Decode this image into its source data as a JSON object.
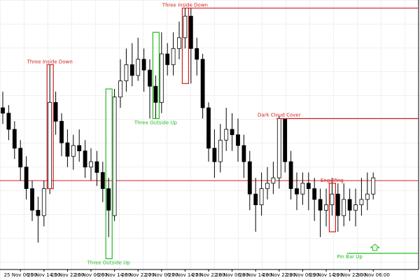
{
  "chart_data": {
    "type": "candlestick",
    "categories": [
      null,
      null,
      null,
      "25 Nov 06:00",
      null,
      null,
      null,
      "25 Nov 14:00",
      null,
      null,
      null,
      "25 Nov 22:00",
      null,
      null,
      null,
      "26 Nov 06:00",
      null,
      null,
      null,
      "26 Nov 14:00",
      null,
      null,
      null,
      "26 Nov 22:00",
      null,
      null,
      null,
      "27 Nov 06:00",
      null,
      null,
      null,
      "27 Nov 14:00",
      null,
      null,
      null,
      "27 Nov 22:00",
      null,
      null,
      null,
      "28 Nov 06:00",
      null,
      null,
      null,
      "28 Nov 14:00",
      null,
      null,
      null,
      "28 Nov 22:00",
      null,
      null,
      null,
      "29 Nov 06:00",
      null,
      null,
      null,
      "29 Nov 14:00",
      null,
      null,
      null,
      "29 Nov 22:00",
      null,
      null,
      null,
      "30 Nov 06:00"
    ],
    "open": [
      60,
      58,
      52,
      45,
      38,
      30,
      22,
      20,
      30,
      62,
      55,
      47,
      42,
      46,
      44,
      38,
      40,
      36,
      30,
      20,
      64,
      70,
      76,
      72,
      78,
      74,
      68,
      62,
      80,
      76,
      82,
      86,
      94,
      82,
      78,
      60,
      45,
      40,
      48,
      52,
      50,
      46,
      40,
      28,
      24,
      30,
      32,
      34,
      56,
      40,
      30,
      28,
      32,
      30,
      26,
      22,
      24,
      28,
      20,
      26,
      22,
      24,
      26,
      28
    ],
    "high": [
      66,
      61,
      55,
      48,
      42,
      33,
      27,
      33,
      76,
      66,
      58,
      52,
      50,
      52,
      48,
      45,
      44,
      40,
      34,
      67,
      78,
      82,
      84,
      86,
      82,
      78,
      72,
      88,
      84,
      88,
      92,
      97,
      97,
      86,
      80,
      62,
      52,
      54,
      60,
      58,
      56,
      50,
      44,
      34,
      36,
      38,
      40,
      57,
      56,
      44,
      36,
      36,
      36,
      34,
      30,
      30,
      34,
      32,
      32,
      30,
      30,
      34,
      36,
      36
    ],
    "low": [
      54,
      48,
      41,
      33,
      26,
      18,
      10,
      16,
      28,
      50,
      42,
      38,
      37,
      40,
      34,
      33,
      31,
      25,
      12,
      18,
      60,
      66,
      68,
      70,
      66,
      56,
      56,
      58,
      72,
      72,
      78,
      82,
      69,
      72,
      56,
      40,
      34,
      36,
      44,
      44,
      40,
      34,
      22,
      14,
      20,
      26,
      28,
      30,
      36,
      26,
      22,
      24,
      22,
      18,
      12,
      16,
      20,
      14,
      16,
      18,
      16,
      20,
      22,
      26
    ],
    "close": [
      58,
      52,
      45,
      38,
      30,
      22,
      20,
      30,
      62,
      55,
      47,
      42,
      46,
      44,
      38,
      40,
      36,
      30,
      22,
      64,
      70,
      76,
      72,
      78,
      74,
      68,
      62,
      80,
      76,
      82,
      86,
      94,
      82,
      78,
      60,
      45,
      40,
      48,
      52,
      50,
      46,
      40,
      28,
      24,
      30,
      32,
      34,
      56,
      40,
      30,
      28,
      32,
      30,
      26,
      22,
      24,
      28,
      20,
      26,
      22,
      24,
      26,
      28,
      34
    ],
    "ylim": [
      0,
      100
    ],
    "hline": {
      "level": 33,
      "color": "#d42020"
    },
    "annotations": [
      {
        "text": "Three Inside Down",
        "color": "#d42020",
        "start": 8,
        "high": 76,
        "low": 30
      },
      {
        "text": "Three Outside Up",
        "color": "#22bb22",
        "start": 18,
        "high": 67,
        "low": 4
      },
      {
        "text": "Three Outside Up",
        "color": "#22bb22",
        "start": 26,
        "high": 88,
        "low": 56
      },
      {
        "text": "Three Inside Down",
        "color": "#d42020",
        "start": 31,
        "high": 97,
        "low": 69,
        "level": 97
      },
      {
        "text": "Dark Cloud Cover",
        "color": "#d42020",
        "start": 47,
        "level": 56
      },
      {
        "text": "Engulfing",
        "color": "#d42020",
        "start": 56,
        "high": 32,
        "low": 14
      },
      {
        "text": "Pin Bar Up",
        "color": "#22bb22",
        "start": 59,
        "level": 6
      }
    ]
  }
}
